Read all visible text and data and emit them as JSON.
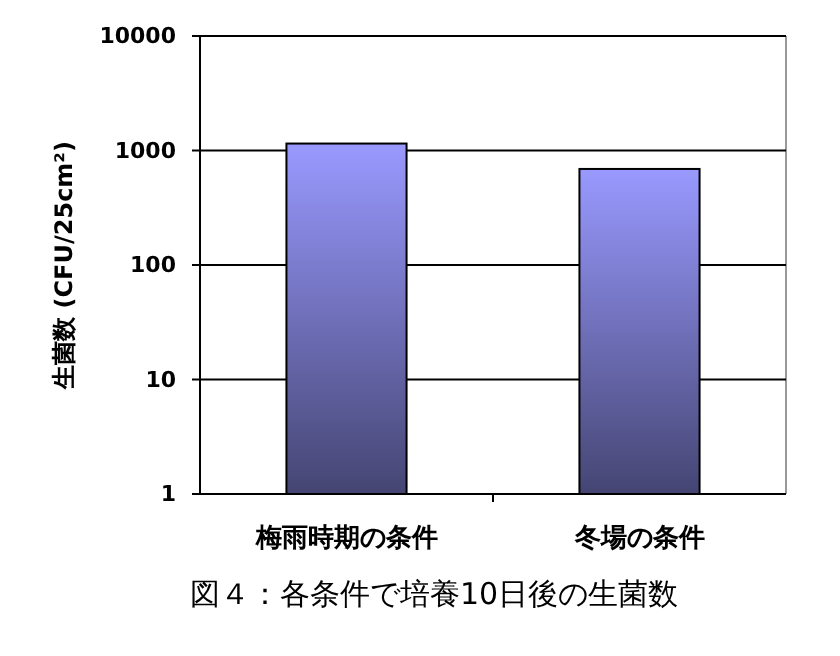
{
  "chart_data": {
    "type": "bar",
    "title": "図４：各条件で培養10日後の生菌数",
    "ylabel": "生菌数 (CFU/25cm²)",
    "categories": [
      "梅雨時期の条件",
      "冬場の条件"
    ],
    "values": [
      1150,
      690
    ],
    "color": "#9999ff",
    "log": true,
    "ylim": [
      1,
      10000
    ],
    "yticks": [
      1,
      10,
      100,
      1000,
      10000
    ],
    "grid": "y"
  }
}
